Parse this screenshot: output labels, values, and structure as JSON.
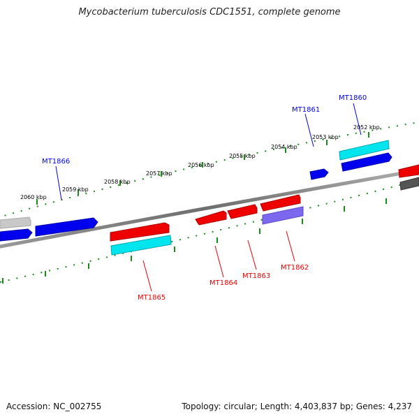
{
  "title": "Mycobacterium tuberculosis CDC1551, complete genome",
  "footer": {
    "accession": "Accession: NC_002755",
    "topology": "Topology: circular; Length: 4,403,837 bp; Genes: 4,237"
  },
  "ticks": [
    "2052 kbp",
    "2053 kbp",
    "2054 kbp",
    "2055 kbp",
    "2056 kbp",
    "2057 kbp",
    "2058 kbp",
    "2059 kbp",
    "2060 kbp"
  ],
  "genes": {
    "plus": [
      "MT1860",
      "MT1861",
      "MT1866"
    ],
    "minus": [
      "MT1862",
      "MT1863",
      "MT1864",
      "MT1865"
    ]
  },
  "colors": {
    "forward": "#0000ee",
    "reverse": "#ee0000",
    "cyan": "#00e5ee",
    "slate": "#7b68ee",
    "grey": "#bdbdbd",
    "dark": "#555555",
    "tick": "#1a8a1a",
    "backbone": "#808080"
  }
}
